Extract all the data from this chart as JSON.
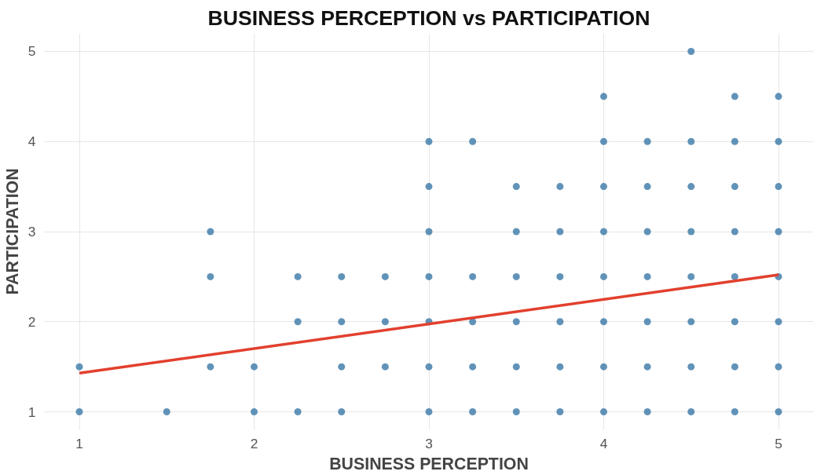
{
  "chart_data": {
    "type": "scatter",
    "title": "BUSINESS PERCEPTION vs PARTICIPATION",
    "xlabel": "BUSINESS PERCEPTION",
    "ylabel": "PARTICIPATION",
    "xlim": [
      0.8,
      5.2
    ],
    "ylim": [
      0.8,
      5.2
    ],
    "xticks": [
      1,
      2,
      3,
      4,
      5
    ],
    "yticks": [
      1,
      2,
      3,
      4,
      5
    ],
    "grid": true,
    "series": [
      {
        "marker": "circle",
        "color": "#3a78a8",
        "x": [
          1,
          1,
          1.5,
          1.75,
          1.75,
          1.75,
          2,
          2,
          2.25,
          2.25,
          2.25,
          2.5,
          2.5,
          2.5,
          2.5,
          2.75,
          2.75,
          2.75,
          3,
          3,
          3,
          3,
          3,
          3,
          3,
          3.25,
          3.25,
          3.25,
          3.25,
          3.25,
          3.5,
          3.5,
          3.5,
          3.5,
          3.5,
          3.5,
          3.75,
          3.75,
          3.75,
          3.75,
          3.75,
          3.75,
          4,
          4,
          4,
          4,
          4,
          4,
          4,
          4,
          4.25,
          4.25,
          4.25,
          4.25,
          4.25,
          4.25,
          4.25,
          4.5,
          4.5,
          4.5,
          4.5,
          4.5,
          4.5,
          4.5,
          4.5,
          4.75,
          4.75,
          4.75,
          4.75,
          4.75,
          4.75,
          4.75,
          4.75,
          5,
          5,
          5,
          5,
          5,
          5,
          5,
          5
        ],
        "values": [
          1,
          1.5,
          1,
          1.5,
          2.5,
          3,
          1,
          1.5,
          1,
          2,
          2.5,
          1,
          1.5,
          2,
          2.5,
          1.5,
          2,
          2.5,
          1,
          1.5,
          2,
          2.5,
          3,
          3.5,
          4,
          1,
          1.5,
          2,
          2.5,
          4,
          1,
          1.5,
          2,
          2.5,
          3,
          3.5,
          1,
          1.5,
          2,
          2.5,
          3,
          3.5,
          1,
          1.5,
          2,
          2.5,
          3,
          3.5,
          4,
          4.5,
          1,
          1.5,
          2,
          2.5,
          3,
          3.5,
          4,
          1,
          1.5,
          2,
          2.5,
          3,
          3.5,
          4,
          5,
          1,
          1.5,
          2,
          2.5,
          3,
          3.5,
          4,
          4.5,
          1,
          1.5,
          2,
          2.5,
          3,
          3.5,
          4,
          4.5
        ]
      },
      {
        "type": "line",
        "color": "#e2402e",
        "x": [
          1,
          5
        ],
        "values": [
          1.43,
          2.52
        ],
        "line_style": "solid"
      }
    ]
  }
}
